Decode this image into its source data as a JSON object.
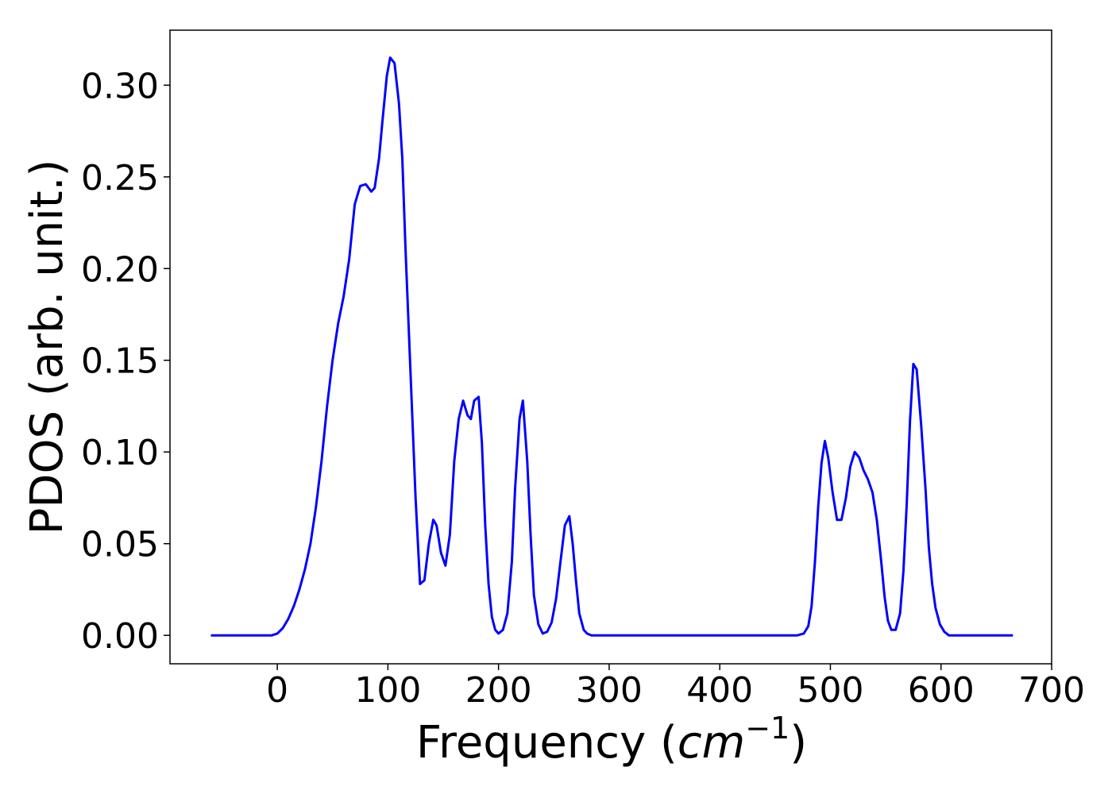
{
  "chart_data": {
    "type": "line",
    "title": "",
    "xlabel": "Frequency (",
    "xlabel_math": "cm",
    "xlabel_exp": "−1",
    "xlabel_close": ")",
    "ylabel": "PDOS (arb. unit.)",
    "xlim": [
      -97,
      700
    ],
    "ylim": [
      -0.0155,
      0.33
    ],
    "xticks": [
      0,
      100,
      200,
      300,
      400,
      500,
      600,
      700
    ],
    "xtick_labels": [
      "0",
      "100",
      "200",
      "300",
      "400",
      "500",
      "600",
      "700"
    ],
    "yticks": [
      0.0,
      0.05,
      0.1,
      0.15,
      0.2,
      0.25,
      0.3
    ],
    "ytick_labels": [
      "0.00",
      "0.05",
      "0.10",
      "0.15",
      "0.20",
      "0.25",
      "0.30"
    ],
    "grid": false,
    "legend": "none",
    "series": [
      {
        "color": "#0000ff",
        "x": [
          -60,
          -20,
          -5,
          0,
          5,
          10,
          15,
          20,
          25,
          30,
          35,
          40,
          45,
          50,
          55,
          60,
          65,
          70,
          75,
          80,
          85,
          88,
          92,
          95,
          99,
          102,
          106,
          110,
          113,
          116,
          119,
          122,
          125,
          129,
          133,
          137,
          141,
          144,
          148,
          152,
          156,
          160,
          164,
          168,
          172,
          175,
          178,
          182,
          185,
          188,
          191,
          194,
          197,
          200,
          204,
          208,
          212,
          215,
          219,
          222,
          226,
          229,
          232,
          236,
          240,
          244,
          248,
          252,
          256,
          260,
          264,
          267,
          270,
          273,
          277,
          280,
          284,
          290,
          300,
          470,
          476,
          480,
          483,
          486,
          489,
          492,
          495,
          498,
          502,
          506,
          510,
          514,
          518,
          522,
          526,
          530,
          534,
          538,
          542,
          546,
          549,
          552,
          555,
          559,
          563,
          566,
          569,
          572,
          575,
          578,
          582,
          586,
          589,
          592,
          595,
          599,
          603,
          607,
          612,
          620,
          665
        ],
        "y": [
          0.0,
          0.0,
          0.0,
          0.001,
          0.004,
          0.009,
          0.016,
          0.025,
          0.036,
          0.05,
          0.07,
          0.095,
          0.125,
          0.15,
          0.17,
          0.185,
          0.205,
          0.235,
          0.245,
          0.246,
          0.242,
          0.244,
          0.26,
          0.28,
          0.305,
          0.315,
          0.312,
          0.29,
          0.26,
          0.21,
          0.165,
          0.12,
          0.075,
          0.028,
          0.03,
          0.05,
          0.063,
          0.06,
          0.045,
          0.038,
          0.055,
          0.095,
          0.118,
          0.128,
          0.12,
          0.118,
          0.128,
          0.13,
          0.105,
          0.06,
          0.028,
          0.01,
          0.003,
          0.001,
          0.003,
          0.012,
          0.04,
          0.08,
          0.118,
          0.128,
          0.095,
          0.055,
          0.022,
          0.006,
          0.001,
          0.002,
          0.007,
          0.02,
          0.04,
          0.06,
          0.065,
          0.05,
          0.03,
          0.012,
          0.003,
          0.001,
          0.0,
          0.0,
          0.0,
          0.0,
          0.001,
          0.005,
          0.016,
          0.04,
          0.07,
          0.094,
          0.106,
          0.097,
          0.078,
          0.063,
          0.063,
          0.075,
          0.092,
          0.1,
          0.097,
          0.09,
          0.085,
          0.078,
          0.063,
          0.04,
          0.021,
          0.008,
          0.003,
          0.003,
          0.012,
          0.035,
          0.072,
          0.117,
          0.148,
          0.145,
          0.115,
          0.08,
          0.048,
          0.028,
          0.015,
          0.006,
          0.002,
          0.0,
          0.0,
          0.0,
          0.0
        ]
      }
    ]
  }
}
